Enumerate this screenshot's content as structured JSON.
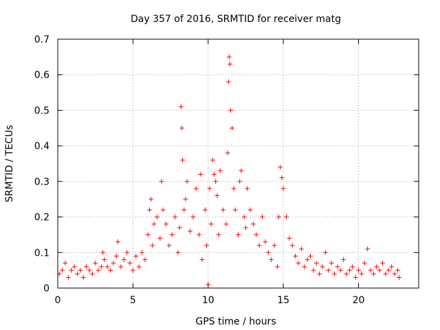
{
  "chart_data": {
    "type": "scatter",
    "title": "Day 357 of 2016, SRMTID for receiver matg",
    "xlabel": "GPS time / hours",
    "ylabel": "SRMTID / TECUs",
    "xlim": [
      0,
      24
    ],
    "ylim": [
      0,
      0.7
    ],
    "xticks": [
      0,
      5,
      10,
      15,
      20
    ],
    "yticks": [
      0,
      0.1,
      0.2,
      0.3,
      0.4,
      0.5,
      0.6,
      0.7
    ],
    "grid": true,
    "marker": "+",
    "series": [
      {
        "name": "SRMTID",
        "color": "#ff0000",
        "x": [
          0.1,
          0.3,
          0.5,
          0.7,
          0.9,
          1.1,
          1.3,
          1.5,
          1.7,
          1.9,
          2.1,
          2.3,
          2.5,
          2.7,
          2.9,
          3.0,
          3.1,
          3.3,
          3.5,
          3.7,
          3.9,
          4.0,
          4.2,
          4.4,
          4.6,
          4.8,
          5.0,
          5.2,
          5.4,
          5.6,
          5.8,
          6.0,
          6.1,
          6.2,
          6.3,
          6.4,
          6.6,
          6.8,
          6.9,
          7.0,
          7.2,
          7.4,
          7.6,
          7.8,
          8.0,
          8.1,
          8.2,
          8.25,
          8.3,
          8.4,
          8.5,
          8.6,
          8.8,
          9.0,
          9.2,
          9.4,
          9.5,
          9.6,
          9.8,
          9.9,
          10.0,
          10.1,
          10.2,
          10.3,
          10.4,
          10.5,
          10.6,
          10.7,
          10.8,
          11.0,
          11.2,
          11.3,
          11.35,
          11.4,
          11.45,
          11.5,
          11.6,
          11.7,
          11.8,
          12.0,
          12.1,
          12.2,
          12.4,
          12.5,
          12.6,
          12.8,
          13.0,
          13.2,
          13.4,
          13.6,
          13.8,
          14.0,
          14.2,
          14.4,
          14.6,
          14.7,
          14.8,
          14.9,
          15.0,
          15.2,
          15.4,
          15.6,
          15.8,
          16.0,
          16.2,
          16.4,
          16.6,
          16.8,
          17.0,
          17.2,
          17.4,
          17.6,
          17.8,
          18.0,
          18.2,
          18.4,
          18.6,
          18.8,
          19.0,
          19.2,
          19.4,
          19.6,
          19.8,
          20.0,
          20.2,
          20.4,
          20.6,
          20.8,
          21.0,
          21.2,
          21.4,
          21.6,
          21.8,
          22.0,
          22.2,
          22.4,
          22.6,
          22.7
        ],
        "y": [
          0.04,
          0.05,
          0.07,
          0.03,
          0.05,
          0.06,
          0.04,
          0.05,
          0.03,
          0.06,
          0.05,
          0.04,
          0.07,
          0.05,
          0.06,
          0.1,
          0.08,
          0.06,
          0.05,
          0.07,
          0.09,
          0.13,
          0.06,
          0.08,
          0.1,
          0.07,
          0.05,
          0.09,
          0.06,
          0.1,
          0.08,
          0.15,
          0.22,
          0.25,
          0.12,
          0.18,
          0.2,
          0.14,
          0.3,
          0.22,
          0.18,
          0.12,
          0.15,
          0.2,
          0.1,
          0.17,
          0.51,
          0.45,
          0.36,
          0.22,
          0.25,
          0.3,
          0.16,
          0.2,
          0.28,
          0.15,
          0.32,
          0.08,
          0.22,
          0.12,
          0.01,
          0.28,
          0.18,
          0.36,
          0.32,
          0.3,
          0.26,
          0.15,
          0.33,
          0.22,
          0.18,
          0.38,
          0.58,
          0.65,
          0.63,
          0.5,
          0.45,
          0.28,
          0.22,
          0.15,
          0.3,
          0.33,
          0.2,
          0.17,
          0.28,
          0.22,
          0.18,
          0.15,
          0.12,
          0.2,
          0.13,
          0.1,
          0.08,
          0.12,
          0.06,
          0.2,
          0.34,
          0.31,
          0.28,
          0.2,
          0.14,
          0.12,
          0.09,
          0.07,
          0.11,
          0.06,
          0.08,
          0.09,
          0.05,
          0.07,
          0.04,
          0.06,
          0.1,
          0.05,
          0.07,
          0.04,
          0.06,
          0.05,
          0.08,
          0.04,
          0.05,
          0.06,
          0.03,
          0.05,
          0.04,
          0.07,
          0.11,
          0.05,
          0.04,
          0.06,
          0.05,
          0.07,
          0.04,
          0.05,
          0.06,
          0.04,
          0.05,
          0.03
        ]
      }
    ]
  }
}
